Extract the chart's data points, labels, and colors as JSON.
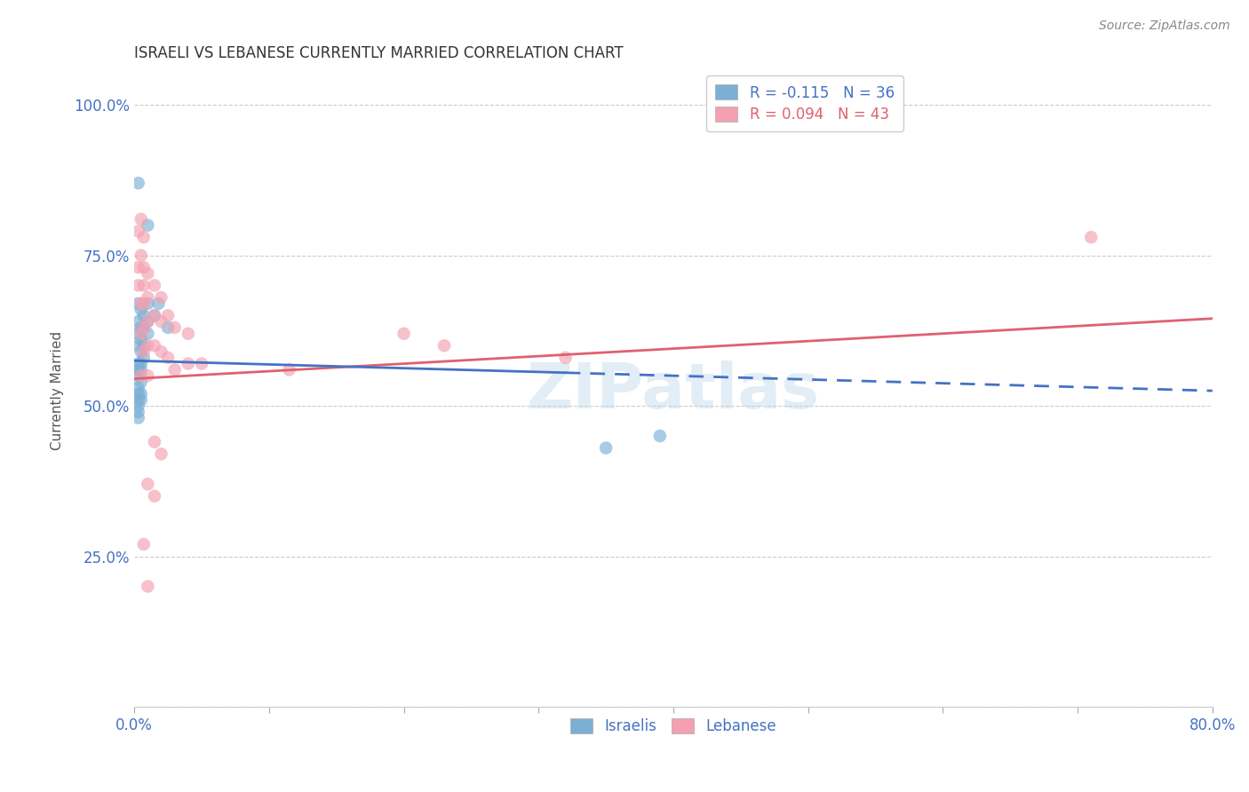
{
  "title": "ISRAELI VS LEBANESE CURRENTLY MARRIED CORRELATION CHART",
  "source": "Source: ZipAtlas.com",
  "ylabel_label": "Currently Married",
  "xlim": [
    0.0,
    0.8
  ],
  "ylim": [
    0.0,
    1.05
  ],
  "yticks": [
    0.0,
    0.25,
    0.5,
    0.75,
    1.0
  ],
  "xticks": [
    0.0,
    0.1,
    0.2,
    0.3,
    0.4,
    0.5,
    0.6,
    0.7,
    0.8
  ],
  "x_tick_labels": [
    "0.0%",
    "",
    "",
    "",
    "",
    "",
    "",
    "",
    "80.0%"
  ],
  "y_tick_labels": [
    "",
    "25.0%",
    "50.0%",
    "75.0%",
    "100.0%"
  ],
  "grid_color": "#cccccc",
  "background_color": "#ffffff",
  "watermark": "ZIPatlas",
  "legend_R_israeli": "-0.115",
  "legend_N_israeli": "36",
  "legend_R_lebanese": "0.094",
  "legend_N_lebanese": "43",
  "israeli_color": "#7bafd4",
  "lebanese_color": "#f4a0b0",
  "israeli_line_color": "#4472c4",
  "lebanese_line_color": "#e06070",
  "israeli_line_solid": [
    0.0,
    0.32
  ],
  "israeli_line_dashed": [
    0.32,
    0.8
  ],
  "israeli_line_y0": 0.575,
  "israeli_line_y1": 0.525,
  "lebanese_line_y0": 0.545,
  "lebanese_line_y1": 0.645,
  "israeli_points": [
    [
      0.003,
      0.87
    ],
    [
      0.01,
      0.8
    ],
    [
      0.003,
      0.67
    ],
    [
      0.003,
      0.64
    ],
    [
      0.003,
      0.62
    ],
    [
      0.003,
      0.6
    ],
    [
      0.003,
      0.57
    ],
    [
      0.003,
      0.56
    ],
    [
      0.003,
      0.55
    ],
    [
      0.003,
      0.53
    ],
    [
      0.003,
      0.52
    ],
    [
      0.003,
      0.51
    ],
    [
      0.003,
      0.5
    ],
    [
      0.003,
      0.49
    ],
    [
      0.003,
      0.48
    ],
    [
      0.005,
      0.66
    ],
    [
      0.005,
      0.63
    ],
    [
      0.005,
      0.61
    ],
    [
      0.005,
      0.59
    ],
    [
      0.005,
      0.57
    ],
    [
      0.005,
      0.56
    ],
    [
      0.005,
      0.54
    ],
    [
      0.005,
      0.52
    ],
    [
      0.005,
      0.51
    ],
    [
      0.007,
      0.65
    ],
    [
      0.007,
      0.63
    ],
    [
      0.007,
      0.6
    ],
    [
      0.007,
      0.58
    ],
    [
      0.01,
      0.67
    ],
    [
      0.01,
      0.64
    ],
    [
      0.01,
      0.62
    ],
    [
      0.015,
      0.65
    ],
    [
      0.018,
      0.67
    ],
    [
      0.025,
      0.63
    ],
    [
      0.35,
      0.43
    ],
    [
      0.39,
      0.45
    ]
  ],
  "lebanese_points": [
    [
      0.003,
      0.79
    ],
    [
      0.005,
      0.81
    ],
    [
      0.007,
      0.78
    ],
    [
      0.003,
      0.73
    ],
    [
      0.005,
      0.75
    ],
    [
      0.007,
      0.73
    ],
    [
      0.003,
      0.7
    ],
    [
      0.007,
      0.7
    ],
    [
      0.01,
      0.72
    ],
    [
      0.005,
      0.67
    ],
    [
      0.007,
      0.67
    ],
    [
      0.01,
      0.68
    ],
    [
      0.015,
      0.7
    ],
    [
      0.02,
      0.68
    ],
    [
      0.005,
      0.62
    ],
    [
      0.007,
      0.63
    ],
    [
      0.01,
      0.64
    ],
    [
      0.015,
      0.65
    ],
    [
      0.02,
      0.64
    ],
    [
      0.025,
      0.65
    ],
    [
      0.03,
      0.63
    ],
    [
      0.04,
      0.62
    ],
    [
      0.007,
      0.59
    ],
    [
      0.01,
      0.6
    ],
    [
      0.015,
      0.6
    ],
    [
      0.02,
      0.59
    ],
    [
      0.025,
      0.58
    ],
    [
      0.04,
      0.57
    ],
    [
      0.015,
      0.44
    ],
    [
      0.02,
      0.42
    ],
    [
      0.01,
      0.37
    ],
    [
      0.015,
      0.35
    ],
    [
      0.007,
      0.27
    ],
    [
      0.01,
      0.2
    ],
    [
      0.005,
      0.55
    ],
    [
      0.01,
      0.55
    ],
    [
      0.03,
      0.56
    ],
    [
      0.05,
      0.57
    ],
    [
      0.2,
      0.62
    ],
    [
      0.23,
      0.6
    ],
    [
      0.32,
      0.58
    ],
    [
      0.71,
      0.78
    ],
    [
      0.115,
      0.56
    ]
  ]
}
